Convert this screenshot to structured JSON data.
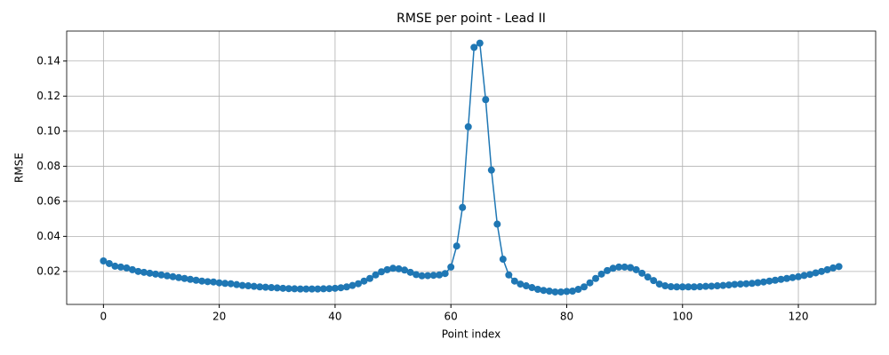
{
  "chart_data": {
    "type": "line",
    "title": "RMSE per point - Lead II",
    "xlabel": "Point index",
    "ylabel": "RMSE",
    "color": "#1f77b4",
    "grid": true,
    "markers": true,
    "x": [
      0,
      1,
      2,
      3,
      4,
      5,
      6,
      7,
      8,
      9,
      10,
      11,
      12,
      13,
      14,
      15,
      16,
      17,
      18,
      19,
      20,
      21,
      22,
      23,
      24,
      25,
      26,
      27,
      28,
      29,
      30,
      31,
      32,
      33,
      34,
      35,
      36,
      37,
      38,
      39,
      40,
      41,
      42,
      43,
      44,
      45,
      46,
      47,
      48,
      49,
      50,
      51,
      52,
      53,
      54,
      55,
      56,
      57,
      58,
      59,
      60,
      61,
      62,
      63,
      64,
      65,
      66,
      67,
      68,
      69,
      70,
      71,
      72,
      73,
      74,
      75,
      76,
      77,
      78,
      79,
      80,
      81,
      82,
      83,
      84,
      85,
      86,
      87,
      88,
      89,
      90,
      91,
      92,
      93,
      94,
      95,
      96,
      97,
      98,
      99,
      100,
      101,
      102,
      103,
      104,
      105,
      106,
      107,
      108,
      109,
      110,
      111,
      112,
      113,
      114,
      115,
      116,
      117,
      118,
      119,
      120,
      121,
      122,
      123,
      124,
      125,
      126,
      127
    ],
    "values": [
      0.026,
      0.0245,
      0.023,
      0.0225,
      0.022,
      0.021,
      0.02,
      0.0195,
      0.019,
      0.0185,
      0.018,
      0.0175,
      0.017,
      0.0165,
      0.016,
      0.0155,
      0.015,
      0.0145,
      0.0142,
      0.014,
      0.0135,
      0.0132,
      0.013,
      0.0125,
      0.012,
      0.0118,
      0.0115,
      0.0112,
      0.011,
      0.0108,
      0.0106,
      0.0104,
      0.0102,
      0.0101,
      0.01,
      0.01,
      0.01,
      0.01,
      0.0101,
      0.0102,
      0.0104,
      0.0107,
      0.0112,
      0.012,
      0.013,
      0.0145,
      0.016,
      0.018,
      0.0198,
      0.021,
      0.0218,
      0.0215,
      0.0208,
      0.0195,
      0.0182,
      0.0175,
      0.0176,
      0.0178,
      0.018,
      0.0188,
      0.0225,
      0.0345,
      0.0565,
      0.1025,
      0.1478,
      0.1502,
      0.118,
      0.0778,
      0.047,
      0.027,
      0.018,
      0.0145,
      0.0128,
      0.0118,
      0.0108,
      0.0098,
      0.0092,
      0.0088,
      0.0083,
      0.0083,
      0.0086,
      0.0088,
      0.0098,
      0.0112,
      0.0135,
      0.016,
      0.0185,
      0.0205,
      0.0218,
      0.0225,
      0.0225,
      0.0222,
      0.021,
      0.019,
      0.0168,
      0.0148,
      0.0128,
      0.0118,
      0.0113,
      0.0112,
      0.0112,
      0.0112,
      0.0112,
      0.0113,
      0.0115,
      0.0116,
      0.0118,
      0.012,
      0.0123,
      0.0126,
      0.0128,
      0.013,
      0.0132,
      0.0136,
      0.014,
      0.0145,
      0.015,
      0.0155,
      0.016,
      0.0165,
      0.017,
      0.0177,
      0.0183,
      0.0192,
      0.02,
      0.021,
      0.022,
      0.0228
    ],
    "xlim": [
      -6.35,
      133.35
    ],
    "xticks": [
      0,
      20,
      40,
      60,
      80,
      100,
      120
    ],
    "ylim": [
      0.0012,
      0.1571
    ],
    "yticks": [
      0.02,
      0.04,
      0.06,
      0.08,
      {
        "value": 0.1,
        "label": "0.10"
      },
      0.12,
      0.14
    ]
  }
}
